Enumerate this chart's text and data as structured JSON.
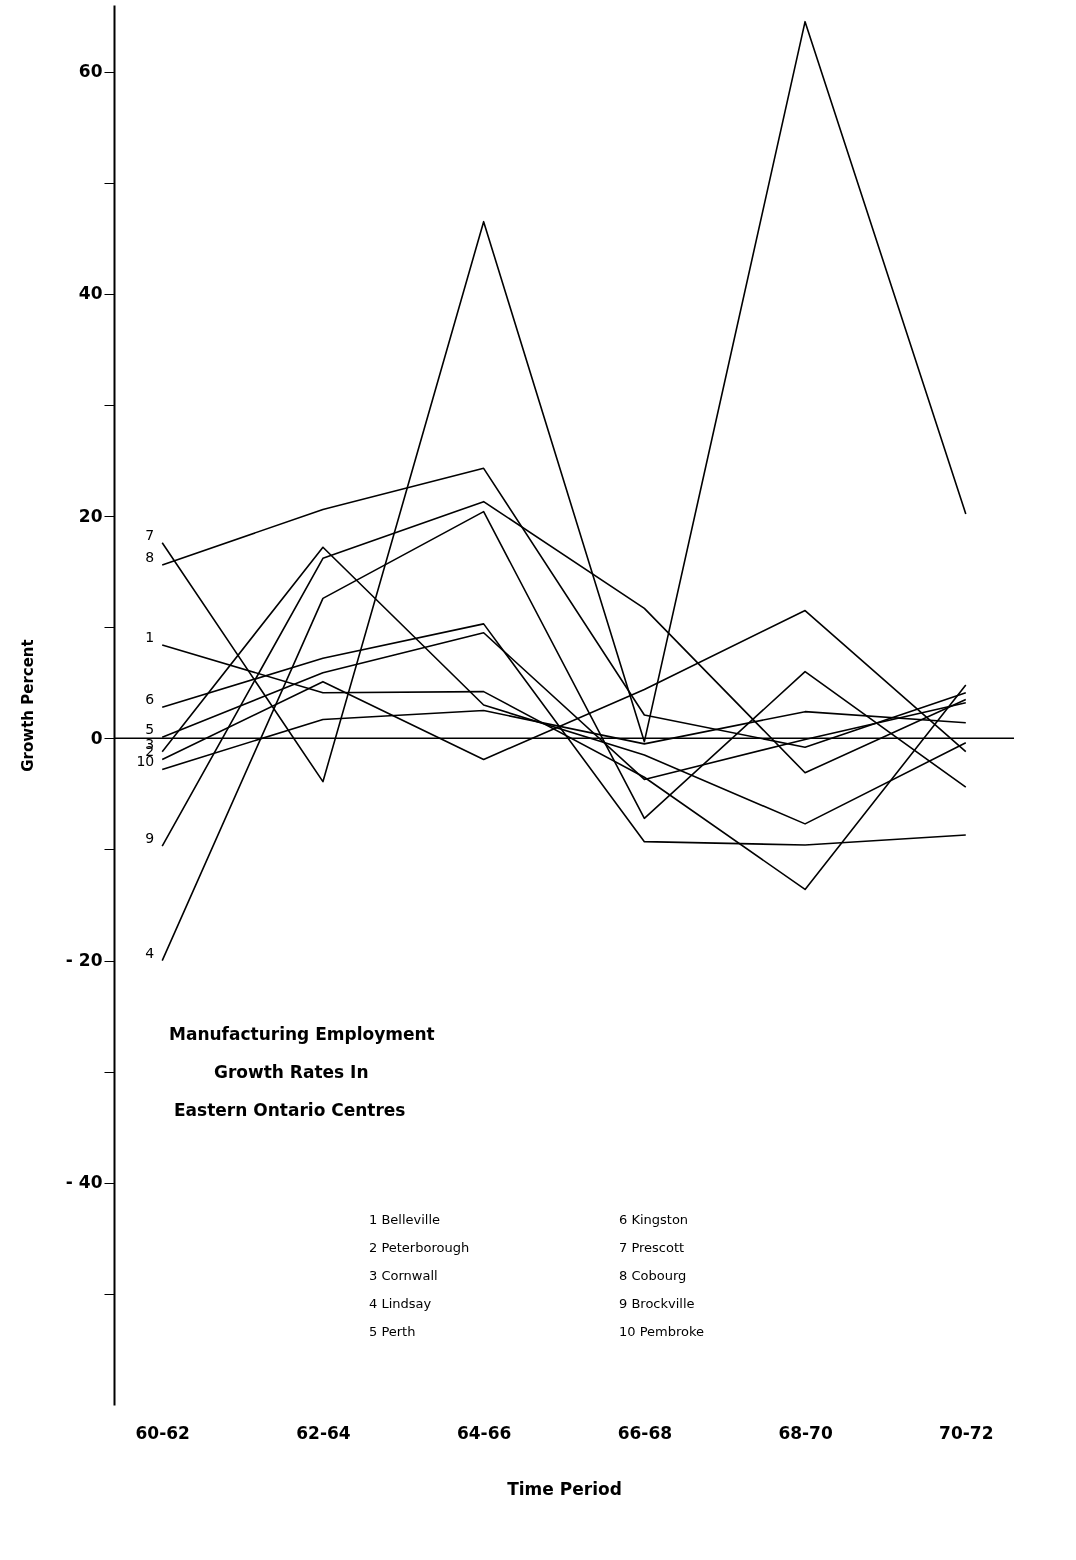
{
  "chart_data": {
    "type": "line",
    "title": "Manufacturing Employment\nGrowth Rates In\nEastern Ontario Centres",
    "xlabel": "Time Period",
    "ylabel": "Growth Percent",
    "categories": [
      "60-62",
      "62-64",
      "64-66",
      "66-68",
      "68-70",
      "70-72"
    ],
    "series": [
      {
        "name": "1",
        "color": "#000000",
        "values": [
          8.4,
          4.1,
          4.2,
          -3.5,
          -13.6,
          4.8
        ]
      },
      {
        "name": "2",
        "color": "#000000",
        "values": [
          -1.9,
          5.1,
          -1.9,
          4.4,
          11.5,
          -1.2
        ]
      },
      {
        "name": "3",
        "color": "#000000",
        "values": [
          -1.2,
          17.2,
          3.0,
          -1.5,
          -7.7,
          -0.4
        ]
      },
      {
        "name": "4",
        "color": "#000000",
        "values": [
          -20.0,
          12.6,
          20.4,
          -7.2,
          6.0,
          -4.4
        ]
      },
      {
        "name": "5",
        "color": "#000000",
        "values": [
          0.1,
          5.9,
          9.5,
          -3.7,
          -0.1,
          3.2
        ]
      },
      {
        "name": "6",
        "color": "#000000",
        "values": [
          2.8,
          7.2,
          10.3,
          -9.3,
          -9.6,
          -8.7
        ]
      },
      {
        "name": "7",
        "color": "#000000",
        "values": [
          17.6,
          -3.9,
          46.5,
          -0.3,
          64.5,
          20.2
        ]
      },
      {
        "name": "8",
        "color": "#000000",
        "values": [
          15.6,
          20.6,
          24.3,
          2.1,
          -0.8,
          4.1
        ]
      },
      {
        "name": "9",
        "color": "#000000",
        "values": [
          -9.7,
          16.2,
          21.3,
          11.7,
          -3.1,
          3.5
        ]
      },
      {
        "name": "10",
        "color": "#000000",
        "values": [
          -2.8,
          1.7,
          2.5,
          -0.5,
          2.4,
          1.4
        ]
      }
    ],
    "ylim": [
      -60,
      66
    ],
    "yticks": [
      {
        "value": -50,
        "label": null
      },
      -40,
      {
        "value": -30,
        "label": null
      },
      -20,
      {
        "value": -10,
        "label": null
      },
      0,
      {
        "value": 10,
        "label": null
      },
      20,
      {
        "value": 30,
        "label": null
      },
      40,
      {
        "value": 50,
        "label": null
      },
      60
    ],
    "ref_lines": [
      {
        "axis": "y",
        "value": 0,
        "color": "#000000"
      }
    ],
    "annotations": [
      "1 Belleville",
      "2 Peterborough",
      "3 Cornwall",
      "4 Lindsay",
      "5 Perth",
      "6 Kingston",
      "7 Prescott",
      "8 Cobourg",
      "9 Brockville",
      "10 Pembroke"
    ],
    "grid": false,
    "legend": false,
    "marker": "none",
    "line_style": "solid"
  }
}
